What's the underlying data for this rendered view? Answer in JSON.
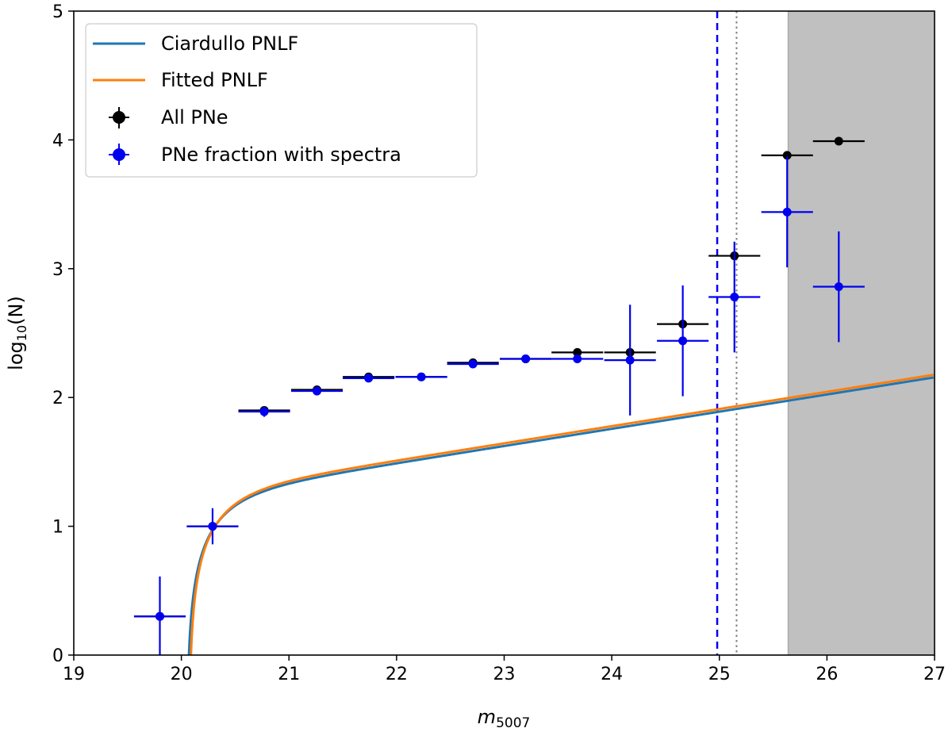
{
  "chart_data": {
    "type": "scatter",
    "xlabel": "m",
    "xlabel_sub": "5007",
    "ylabel": "log",
    "ylabel_sub": "10",
    "ylabel_suffix": "(N)",
    "xlim": [
      19,
      27
    ],
    "ylim": [
      0,
      5
    ],
    "xticks": [
      19,
      20,
      21,
      22,
      23,
      24,
      25,
      26,
      27
    ],
    "yticks": [
      0,
      1,
      2,
      3,
      4,
      5
    ],
    "grid": false,
    "legend_position": "top-left",
    "shaded_region": {
      "x_from": 25.64,
      "x_to": 27,
      "color": "#c0c0c0"
    },
    "vlines": [
      {
        "x": 24.98,
        "style": "dashed",
        "color": "#0000ee"
      },
      {
        "x": 25.16,
        "style": "dotted",
        "color": "#808080"
      }
    ],
    "series": [
      {
        "name": "Ciardullo PNLF",
        "kind": "line",
        "color": "#1f77b4",
        "params": {
          "m_star": 20.05,
          "amplitude": 12.3,
          "slope": 0.307
        }
      },
      {
        "name": "Fitted PNLF",
        "kind": "line",
        "color": "#ff7f0e",
        "params": {
          "m_star": 20.07,
          "amplitude": 12.9,
          "slope": 0.307
        }
      },
      {
        "name": "All PNe",
        "kind": "errorbar",
        "color": "#000000",
        "points": [
          {
            "x": 19.8,
            "y": 0.3,
            "xerr": 0.24,
            "yerr_lo": 0.0,
            "yerr_hi": 0.0
          },
          {
            "x": 20.29,
            "y": 1.0,
            "xerr": 0.24,
            "yerr_lo": 0.0,
            "yerr_hi": 0.0
          },
          {
            "x": 20.77,
            "y": 1.9,
            "xerr": 0.24,
            "yerr_lo": 0.0,
            "yerr_hi": 0.0
          },
          {
            "x": 21.26,
            "y": 2.06,
            "xerr": 0.24,
            "yerr_lo": 0.0,
            "yerr_hi": 0.0
          },
          {
            "x": 21.74,
            "y": 2.16,
            "xerr": 0.24,
            "yerr_lo": 0.0,
            "yerr_hi": 0.0
          },
          {
            "x": 22.23,
            "y": 2.16,
            "xerr": 0.24,
            "yerr_lo": 0.0,
            "yerr_hi": 0.0
          },
          {
            "x": 22.71,
            "y": 2.27,
            "xerr": 0.24,
            "yerr_lo": 0.0,
            "yerr_hi": 0.0
          },
          {
            "x": 23.2,
            "y": 2.3,
            "xerr": 0.24,
            "yerr_lo": 0.0,
            "yerr_hi": 0.0
          },
          {
            "x": 23.68,
            "y": 2.35,
            "xerr": 0.24,
            "yerr_lo": 0.0,
            "yerr_hi": 0.0
          },
          {
            "x": 24.17,
            "y": 2.35,
            "xerr": 0.24,
            "yerr_lo": 0.0,
            "yerr_hi": 0.0
          },
          {
            "x": 24.66,
            "y": 2.57,
            "xerr": 0.24,
            "yerr_lo": 0.0,
            "yerr_hi": 0.0
          },
          {
            "x": 25.14,
            "y": 3.1,
            "xerr": 0.24,
            "yerr_lo": 0.0,
            "yerr_hi": 0.0
          },
          {
            "x": 25.63,
            "y": 3.88,
            "xerr": 0.24,
            "yerr_lo": 0.0,
            "yerr_hi": 0.0
          },
          {
            "x": 26.11,
            "y": 3.99,
            "xerr": 0.24,
            "yerr_lo": 0.0,
            "yerr_hi": 0.0
          }
        ]
      },
      {
        "name": "PNe fraction with spectra",
        "kind": "errorbar",
        "color": "#0000ee",
        "points": [
          {
            "x": 19.8,
            "y": 0.3,
            "xerr": 0.24,
            "yerr_lo": 0.3,
            "yerr_hi": 0.31
          },
          {
            "x": 20.29,
            "y": 1.0,
            "xerr": 0.24,
            "yerr_lo": 0.14,
            "yerr_hi": 0.14
          },
          {
            "x": 20.77,
            "y": 1.89,
            "xerr": 0.24,
            "yerr_lo": 0.04,
            "yerr_hi": 0.04
          },
          {
            "x": 21.26,
            "y": 2.05,
            "xerr": 0.24,
            "yerr_lo": 0.03,
            "yerr_hi": 0.03
          },
          {
            "x": 21.74,
            "y": 2.15,
            "xerr": 0.24,
            "yerr_lo": 0.02,
            "yerr_hi": 0.02
          },
          {
            "x": 22.23,
            "y": 2.16,
            "xerr": 0.24,
            "yerr_lo": 0.02,
            "yerr_hi": 0.02
          },
          {
            "x": 22.71,
            "y": 2.26,
            "xerr": 0.24,
            "yerr_lo": 0.02,
            "yerr_hi": 0.02
          },
          {
            "x": 23.2,
            "y": 2.3,
            "xerr": 0.24,
            "yerr_lo": 0.02,
            "yerr_hi": 0.02
          },
          {
            "x": 23.68,
            "y": 2.3,
            "xerr": 0.24,
            "yerr_lo": 0.02,
            "yerr_hi": 0.02
          },
          {
            "x": 24.17,
            "y": 2.29,
            "xerr": 0.24,
            "yerr_lo": 0.43,
            "yerr_hi": 0.43
          },
          {
            "x": 24.66,
            "y": 2.44,
            "xerr": 0.24,
            "yerr_lo": 0.43,
            "yerr_hi": 0.43
          },
          {
            "x": 25.14,
            "y": 2.78,
            "xerr": 0.24,
            "yerr_lo": 0.43,
            "yerr_hi": 0.43
          },
          {
            "x": 25.63,
            "y": 3.44,
            "xerr": 0.24,
            "yerr_lo": 0.43,
            "yerr_hi": 0.43
          },
          {
            "x": 26.11,
            "y": 2.86,
            "xerr": 0.24,
            "yerr_lo": 0.43,
            "yerr_hi": 0.43
          }
        ]
      }
    ]
  }
}
